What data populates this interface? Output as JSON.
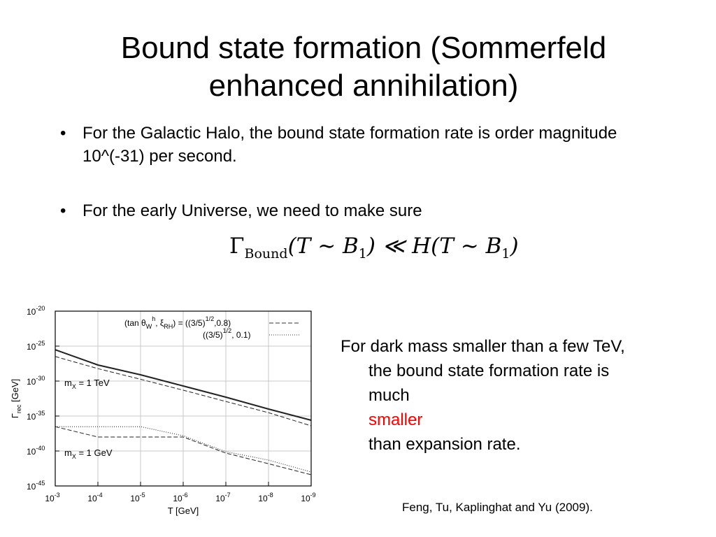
{
  "slide": {
    "title_line1": "Bound state formation (Sommerfeld",
    "title_line2": "enhanced annihilation)",
    "bullets": [
      "For the Galactic Halo,  the bound state formation rate is order magnitude 10^(-31) per second.",
      "For the early Universe,  we need to make sure"
    ],
    "bullet_symbol": "•",
    "equation": {
      "gamma": "Γ",
      "gamma_sub": "Bound",
      "lhs_args": "(T ∼ B",
      "sub1": "1",
      "rel": ") ≪ H(T ∼ B",
      "sub2": "1",
      "close": ")"
    },
    "side_text": {
      "line1": "For dark mass smaller than a few TeV,",
      "line2": "the bound state formation rate is",
      "line3_pre": "much ",
      "line3_red": "smaller",
      "line3_post": " than expansion rate."
    },
    "highlight_color": "#ff0000",
    "citation": "Feng, Tu, Kaplinghat and Yu (2009)."
  },
  "chart_data": {
    "type": "line",
    "x_axis": {
      "label": "T [GeV]",
      "scale": "log",
      "reversed": true,
      "range": [
        0.001,
        1e-09
      ],
      "ticks": [
        {
          "value": 0.001,
          "mantissa": "10",
          "exp": "-3"
        },
        {
          "value": 0.0001,
          "mantissa": "10",
          "exp": "-4"
        },
        {
          "value": 1e-05,
          "mantissa": "10",
          "exp": "-5"
        },
        {
          "value": 1e-06,
          "mantissa": "10",
          "exp": "-6"
        },
        {
          "value": 1e-07,
          "mantissa": "10",
          "exp": "-7"
        },
        {
          "value": 1e-08,
          "mantissa": "10",
          "exp": "-8"
        },
        {
          "value": 1e-09,
          "mantissa": "10",
          "exp": "-9"
        }
      ]
    },
    "y_axis": {
      "label_main": "Γ",
      "label_sub": "rec",
      "label_unit": " [GeV]",
      "scale": "log",
      "range": [
        1e-45,
        1e-20
      ],
      "ticks": [
        {
          "value": 1e-20,
          "mantissa": "10",
          "exp": "-20"
        },
        {
          "value": 1e-25,
          "mantissa": "10",
          "exp": "-25"
        },
        {
          "value": 1e-30,
          "mantissa": "10",
          "exp": "-30"
        },
        {
          "value": 1e-35,
          "mantissa": "10",
          "exp": "-35"
        },
        {
          "value": 1e-40,
          "mantissa": "10",
          "exp": "-40"
        },
        {
          "value": 1e-45,
          "mantissa": "10",
          "exp": "-45"
        }
      ]
    },
    "legend": {
      "placement": "top-right",
      "line1": {
        "prefix": "(tan θ",
        "sub_w": "W",
        "sup_h": "h",
        "mid": ", ξ",
        "sub_rh": "RH",
        "eq": ") = ((3/5)",
        "sup": "1/2",
        "tail": ",0.8)"
      },
      "line2": {
        "prefix": "((3/5)",
        "sup": "1/2",
        "tail": ", 0.1)"
      }
    },
    "annotations": [
      {
        "pre": "m",
        "sub": "X",
        "post": " = 1 TeV",
        "at": [
          0.0001,
          1e-31
        ]
      },
      {
        "pre": "m",
        "sub": "X",
        "post": " = 1 GeV",
        "at": [
          0.0001,
          1e-41
        ]
      }
    ],
    "series": [
      {
        "style": "solid",
        "width": 2,
        "points": [
          [
            0.001,
            3e-26
          ],
          [
            0.0001,
            2e-28
          ],
          [
            1e-05,
            8e-30
          ],
          [
            1e-06,
            2e-31
          ],
          [
            1e-07,
            5e-33
          ],
          [
            1e-08,
            1e-34
          ],
          [
            1e-09,
            2.5e-36
          ]
        ]
      },
      {
        "style": "dashed",
        "width": 1,
        "points": [
          [
            0.001,
            3.2e-27
          ],
          [
            0.0001,
            6e-29
          ],
          [
            1e-05,
            1.8e-30
          ],
          [
            1e-06,
            5e-32
          ],
          [
            1e-07,
            1.2e-33
          ],
          [
            1e-08,
            3e-35
          ],
          [
            1e-09,
            4e-37
          ]
        ]
      },
      {
        "style": "dotted",
        "width": 1,
        "points": [
          [
            0.001,
            3e-37
          ],
          [
            0.0001,
            3e-37
          ],
          [
            1e-05,
            3e-37
          ],
          [
            1e-06,
            1.5e-38
          ],
          [
            1e-07,
            8e-41
          ],
          [
            1e-08,
            5e-42
          ],
          [
            1e-09,
            1e-43
          ]
        ]
      },
      {
        "style": "dashed",
        "width": 1,
        "points": [
          [
            0.001,
            3e-37
          ],
          [
            0.0001,
            1e-38
          ],
          [
            1e-05,
            1e-38
          ],
          [
            1e-06,
            1e-38
          ],
          [
            1e-07,
            5e-41
          ],
          [
            1e-08,
            1.5e-42
          ],
          [
            1e-09,
            4e-44
          ]
        ]
      }
    ]
  }
}
